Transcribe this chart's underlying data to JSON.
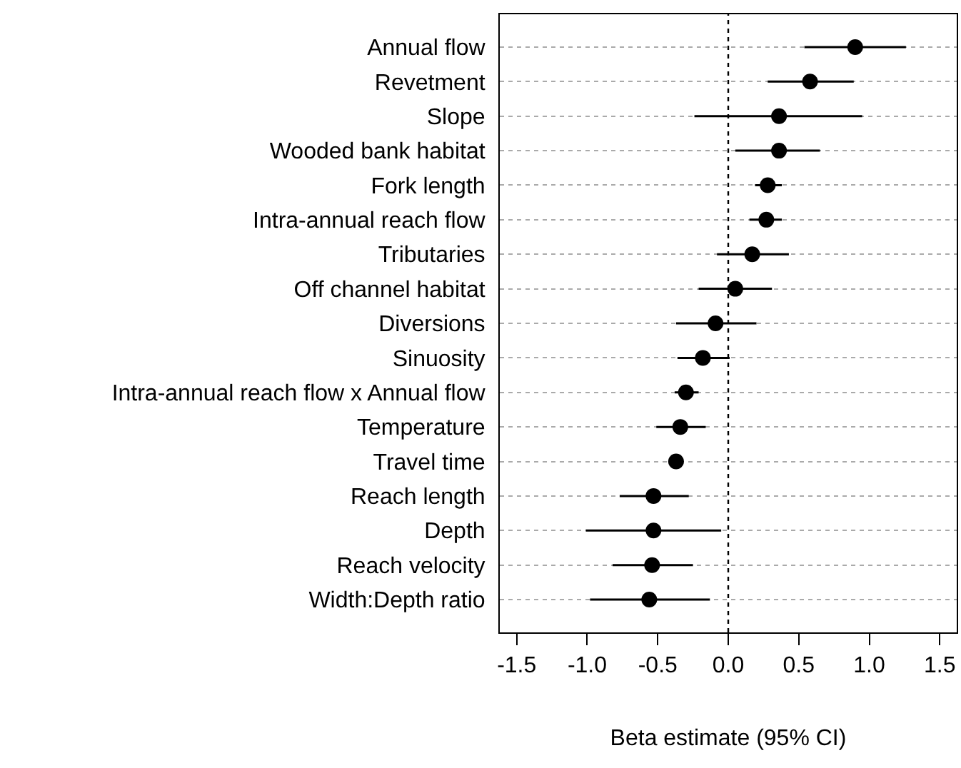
{
  "chart_data": {
    "type": "scatter",
    "orientation": "horizontal",
    "xlabel": "Beta estimate (95% CI)",
    "categories": [
      "Annual flow",
      "Revetment",
      "Slope",
      "Wooded bank habitat",
      "Fork length",
      "Intra-annual reach flow",
      "Tributaries",
      "Off channel habitat",
      "Diversions",
      "Sinuosity",
      "Intra-annual reach flow x Annual flow",
      "Temperature",
      "Travel time",
      "Reach length",
      "Depth",
      "Reach velocity",
      "Width:Depth ratio"
    ],
    "values": [
      0.9,
      0.58,
      0.36,
      0.36,
      0.28,
      0.27,
      0.17,
      0.05,
      -0.09,
      -0.18,
      -0.3,
      -0.34,
      -0.37,
      -0.53,
      -0.53,
      -0.54,
      -0.56
    ],
    "errors": [
      [
        0.54,
        1.26
      ],
      [
        0.28,
        0.89
      ],
      [
        -0.24,
        0.95
      ],
      [
        0.05,
        0.65
      ],
      [
        0.19,
        0.38
      ],
      [
        0.15,
        0.38
      ],
      [
        -0.08,
        0.43
      ],
      [
        -0.21,
        0.31
      ],
      [
        -0.37,
        0.2
      ],
      [
        -0.36,
        0.01
      ],
      [
        -0.38,
        -0.21
      ],
      [
        -0.51,
        -0.16
      ],
      [
        -0.42,
        -0.33
      ],
      [
        -0.77,
        -0.28
      ],
      [
        -1.01,
        -0.05
      ],
      [
        -0.82,
        -0.25
      ],
      [
        -0.98,
        -0.13
      ]
    ],
    "color": "#000000",
    "marker": "circle",
    "xlim": [
      -1.62,
      1.62
    ],
    "xticks": [
      {
        "value": -1.5,
        "label": "-1.5"
      },
      {
        "value": -1,
        "label": "-1.0"
      },
      {
        "value": -0.5,
        "label": "-0.5"
      },
      {
        "value": 0,
        "label": "0.0"
      },
      {
        "value": 0.5,
        "label": "0.5"
      },
      {
        "value": 1,
        "label": "1.0"
      },
      {
        "value": 1.5,
        "label": "1.5"
      }
    ],
    "grid": "y",
    "ref_lines": [
      {
        "axis": "x",
        "value": 0,
        "line_style": "dotted",
        "color": "#000000"
      }
    ]
  }
}
